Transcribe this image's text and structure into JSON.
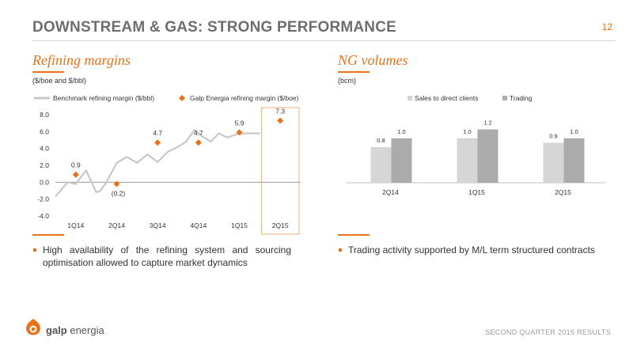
{
  "header": {
    "title": "DOWNSTREAM & GAS: STRONG PERFORMANCE",
    "page_number": "12"
  },
  "left_section": {
    "title": "Refining margins",
    "unit": "($/boe and $/bbl)",
    "bullet": "High availability of the refining system and sourcing optimisation allowed to capture market dynamics"
  },
  "right_section": {
    "title": "NG volumes",
    "unit": "(bcm)",
    "bullet": "Trading activity supported by M/L term structured contracts"
  },
  "footer": {
    "brand_bold": "galp",
    "brand_rest": " energia",
    "report_label": "SECOND QUARTER 2015 RESULTS"
  },
  "colors": {
    "accent": "#e8711a",
    "benchmark_line": "#c8c8c8",
    "ng_sales": "#d5d5d5",
    "ng_trading": "#ababab"
  },
  "chart_data": [
    {
      "type": "line",
      "title": "",
      "legend_position": "top",
      "categories": [
        "1Q14",
        "2Q14",
        "3Q14",
        "4Q14",
        "1Q15",
        "2Q15"
      ],
      "yticks": [
        "8.0",
        "6.0",
        "4.0",
        "2.0",
        "0.0",
        "-2.0",
        "-4.0"
      ],
      "ylim": [
        -4,
        8
      ],
      "grid": false,
      "highlighted_category": "2Q15",
      "series": [
        {
          "name": "Benchmark refining margin ($/bbl)",
          "kind": "line",
          "x": [
            0.0,
            0.3,
            0.5,
            0.75,
            1.0,
            1.1,
            1.25,
            1.5,
            1.75,
            2.0,
            2.25,
            2.5,
            2.75,
            3.0,
            3.2,
            3.4,
            3.6,
            3.8,
            4.0,
            4.2,
            4.45,
            4.7,
            5.0
          ],
          "y": [
            -1.7,
            0.0,
            -0.2,
            1.4,
            -1.2,
            -1.0,
            0.0,
            2.3,
            3.0,
            2.3,
            3.3,
            2.4,
            3.6,
            4.2,
            4.8,
            6.2,
            5.4,
            4.8,
            5.8,
            5.3,
            5.7,
            5.8,
            5.8
          ]
        },
        {
          "name": "Galp Energia refining margin ($/boe)",
          "kind": "marker",
          "values": [
            0.9,
            -0.2,
            4.7,
            4.7,
            5.9,
            7.3
          ],
          "labels": [
            "0.9",
            "(0.2)",
            "4.7",
            "4.7",
            "5.9",
            "7.3"
          ]
        }
      ]
    },
    {
      "type": "bar",
      "title": "",
      "legend_position": "top",
      "categories": [
        "2Q14",
        "1Q15",
        "2Q15"
      ],
      "ylim": [
        0,
        1.6
      ],
      "grid": false,
      "series": [
        {
          "name": "Sales to direct clients",
          "values": [
            0.8,
            1.0,
            0.9
          ],
          "labels": [
            "0.8",
            "1.0",
            "0.9"
          ]
        },
        {
          "name": "Trading",
          "values": [
            1.0,
            1.2,
            1.0
          ],
          "labels": [
            "1.0",
            "1.2",
            "1.0"
          ]
        }
      ]
    }
  ]
}
